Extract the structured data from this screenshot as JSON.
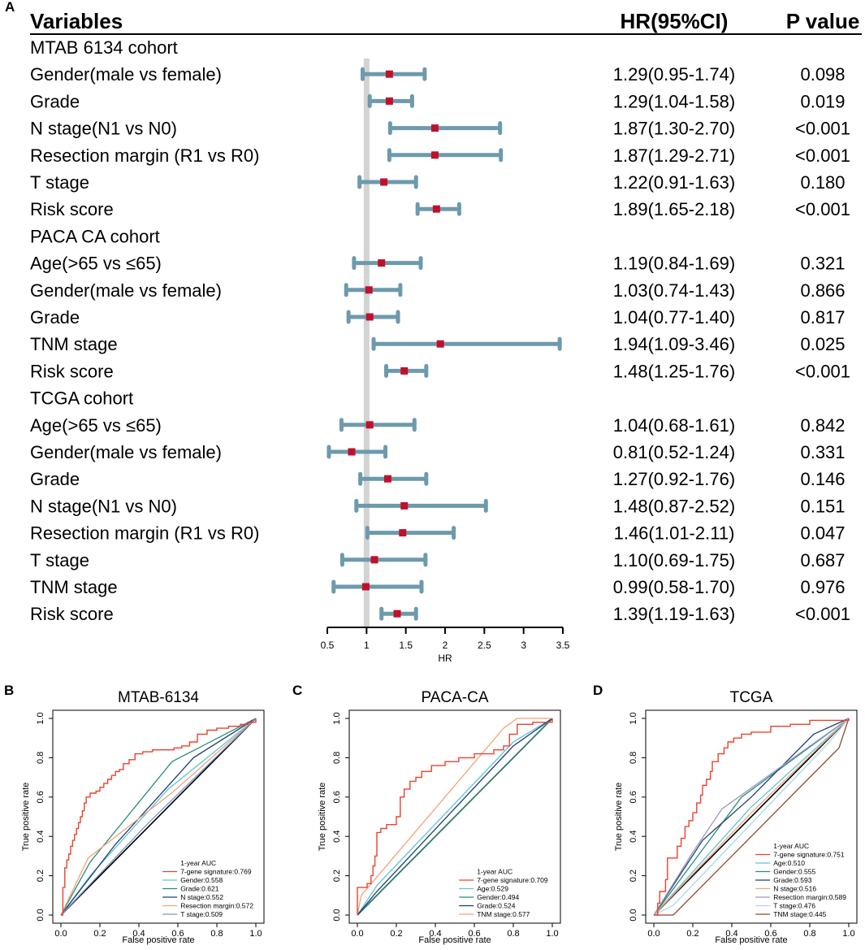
{
  "colors": {
    "ci_line": "#6d9aad",
    "point": "#c0112b",
    "reference_line": "#d3d3d3",
    "text": "#000000"
  },
  "chart_data": [
    {
      "type": "forest",
      "panel_label": "A",
      "headers": {
        "variables": "Variables",
        "hr": "HR(95%CI)",
        "p": "P value"
      },
      "xlabel": "HR",
      "xlim": [
        0.5,
        3.5
      ],
      "ticks": [
        0.5,
        1,
        1.5,
        2,
        2.5,
        3,
        3.5
      ],
      "tick_labels": [
        "0.5",
        "1",
        "1.5",
        "2",
        "2.5",
        "3",
        "3.5"
      ],
      "reference_value": 1,
      "rows": [
        {
          "label": "MTAB 6134 cohort",
          "group": true
        },
        {
          "label": "Gender(male vs female)",
          "hr": 1.29,
          "lo": 0.95,
          "hi": 1.74,
          "hr_text": "1.29(0.95-1.74)",
          "p": "0.098"
        },
        {
          "label": "Grade",
          "hr": 1.29,
          "lo": 1.04,
          "hi": 1.58,
          "hr_text": "1.29(1.04-1.58)",
          "p": "0.019"
        },
        {
          "label": "N stage(N1 vs N0)",
          "hr": 1.87,
          "lo": 1.3,
          "hi": 2.7,
          "hr_text": "1.87(1.30-2.70)",
          "p": "<0.001"
        },
        {
          "label": "Resection margin (R1 vs R0)",
          "hr": 1.87,
          "lo": 1.29,
          "hi": 2.71,
          "hr_text": "1.87(1.29-2.71)",
          "p": "<0.001"
        },
        {
          "label": "T stage",
          "hr": 1.22,
          "lo": 0.91,
          "hi": 1.63,
          "hr_text": "1.22(0.91-1.63)",
          "p": "0.180"
        },
        {
          "label": "Risk score",
          "hr": 1.89,
          "lo": 1.65,
          "hi": 2.18,
          "hr_text": "1.89(1.65-2.18)",
          "p": "<0.001"
        },
        {
          "label": "PACA CA cohort",
          "group": true
        },
        {
          "label": "Age(>65 vs ≤65)",
          "hr": 1.19,
          "lo": 0.84,
          "hi": 1.69,
          "hr_text": "1.19(0.84-1.69)",
          "p": "0.321"
        },
        {
          "label": "Gender(male vs female)",
          "hr": 1.03,
          "lo": 0.74,
          "hi": 1.43,
          "hr_text": "1.03(0.74-1.43)",
          "p": "0.866"
        },
        {
          "label": "Grade",
          "hr": 1.04,
          "lo": 0.77,
          "hi": 1.4,
          "hr_text": "1.04(0.77-1.40)",
          "p": "0.817"
        },
        {
          "label": "TNM stage",
          "hr": 1.94,
          "lo": 1.09,
          "hi": 3.46,
          "hr_text": "1.94(1.09-3.46)",
          "p": "0.025"
        },
        {
          "label": "Risk score",
          "hr": 1.48,
          "lo": 1.25,
          "hi": 1.76,
          "hr_text": "1.48(1.25-1.76)",
          "p": "<0.001"
        },
        {
          "label": "TCGA cohort",
          "group": true
        },
        {
          "label": "Age(>65 vs ≤65)",
          "hr": 1.04,
          "lo": 0.68,
          "hi": 1.61,
          "hr_text": "1.04(0.68-1.61)",
          "p": "0.842"
        },
        {
          "label": "Gender(male vs female)",
          "hr": 0.81,
          "lo": 0.52,
          "hi": 1.24,
          "hr_text": "0.81(0.52-1.24)",
          "p": "0.331"
        },
        {
          "label": "Grade",
          "hr": 1.27,
          "lo": 0.92,
          "hi": 1.76,
          "hr_text": "1.27(0.92-1.76)",
          "p": "0.146"
        },
        {
          "label": "N stage(N1 vs N0)",
          "hr": 1.48,
          "lo": 0.87,
          "hi": 2.52,
          "hr_text": "1.48(0.87-2.52)",
          "p": "0.151"
        },
        {
          "label": "Resection margin (R1 vs R0)",
          "hr": 1.46,
          "lo": 1.01,
          "hi": 2.11,
          "hr_text": "1.46(1.01-2.11)",
          "p": "0.047"
        },
        {
          "label": "T stage",
          "hr": 1.1,
          "lo": 0.69,
          "hi": 1.75,
          "hr_text": "1.10(0.69-1.75)",
          "p": "0.687"
        },
        {
          "label": "TNM stage",
          "hr": 0.99,
          "lo": 0.58,
          "hi": 1.7,
          "hr_text": "0.99(0.58-1.70)",
          "p": "0.976"
        },
        {
          "label": "Risk score",
          "hr": 1.39,
          "lo": 1.19,
          "hi": 1.63,
          "hr_text": "1.39(1.19-1.63)",
          "p": "<0.001"
        }
      ]
    },
    {
      "type": "line",
      "panel_label": "B",
      "title": "MTAB-6134",
      "xlabel": "False positive rate",
      "ylabel": "True positive rate",
      "xlim": [
        0,
        1
      ],
      "ylim": [
        0,
        1
      ],
      "ticks": [
        0,
        0.2,
        0.4,
        0.6,
        0.8,
        1
      ],
      "tick_labels": [
        "0.0",
        "0.2",
        "0.4",
        "0.6",
        "0.8",
        "1.0"
      ],
      "legend_title": "1-year AUC",
      "series": [
        {
          "name": "7-gene signature:0.769",
          "color": "#e8432e",
          "step": true,
          "points": [
            [
              0,
              0
            ],
            [
              0.01,
              0.08
            ],
            [
              0.01,
              0.14
            ],
            [
              0.02,
              0.18
            ],
            [
              0.02,
              0.24
            ],
            [
              0.03,
              0.28
            ],
            [
              0.04,
              0.31
            ],
            [
              0.05,
              0.35
            ],
            [
              0.06,
              0.38
            ],
            [
              0.07,
              0.41
            ],
            [
              0.08,
              0.44
            ],
            [
              0.09,
              0.47
            ],
            [
              0.1,
              0.5
            ],
            [
              0.11,
              0.53
            ],
            [
              0.12,
              0.57
            ],
            [
              0.13,
              0.6
            ],
            [
              0.15,
              0.62
            ],
            [
              0.18,
              0.63
            ],
            [
              0.2,
              0.65
            ],
            [
              0.22,
              0.67
            ],
            [
              0.24,
              0.69
            ],
            [
              0.26,
              0.71
            ],
            [
              0.28,
              0.73
            ],
            [
              0.3,
              0.74
            ],
            [
              0.32,
              0.77
            ],
            [
              0.35,
              0.79
            ],
            [
              0.38,
              0.82
            ],
            [
              0.42,
              0.83
            ],
            [
              0.47,
              0.84
            ],
            [
              0.52,
              0.84
            ],
            [
              0.58,
              0.85
            ],
            [
              0.62,
              0.86
            ],
            [
              0.66,
              0.88
            ],
            [
              0.7,
              0.92
            ],
            [
              0.75,
              0.94
            ],
            [
              0.8,
              0.95
            ],
            [
              0.86,
              0.96
            ],
            [
              0.92,
              0.97
            ],
            [
              0.96,
              0.98
            ],
            [
              1,
              0.99
            ],
            [
              1,
              1
            ]
          ]
        },
        {
          "name": "Gender:0.558",
          "color": "#5ec4d4",
          "step": false,
          "points": [
            [
              0,
              0
            ],
            [
              0.15,
              0.2
            ],
            [
              0.55,
              0.64
            ],
            [
              1,
              1
            ]
          ]
        },
        {
          "name": "Grade:0.621",
          "color": "#2a8c79",
          "step": false,
          "points": [
            [
              0,
              0
            ],
            [
              0.15,
              0.27
            ],
            [
              0.57,
              0.78
            ],
            [
              1,
              1
            ]
          ]
        },
        {
          "name": "N stage:0.552",
          "color": "#1e3e73",
          "step": false,
          "points": [
            [
              0,
              0
            ],
            [
              0.28,
              0.36
            ],
            [
              0.68,
              0.8
            ],
            [
              1,
              1
            ]
          ]
        },
        {
          "name": "Resection margin:0.572",
          "color": "#f0a37a",
          "step": false,
          "points": [
            [
              0,
              0
            ],
            [
              0.14,
              0.29
            ],
            [
              0.58,
              0.63
            ],
            [
              1,
              1
            ]
          ]
        },
        {
          "name": "T stage:0.509",
          "color": "#7a96c9",
          "step": false,
          "points": [
            [
              0,
              0
            ],
            [
              0.45,
              0.47
            ],
            [
              1,
              1
            ]
          ]
        }
      ]
    },
    {
      "type": "line",
      "panel_label": "C",
      "title": "PACA-CA",
      "xlabel": "False positive rate",
      "ylabel": "True positive rate",
      "xlim": [
        0,
        1
      ],
      "ylim": [
        0,
        1
      ],
      "ticks": [
        0,
        0.2,
        0.4,
        0.6,
        0.8,
        1
      ],
      "tick_labels": [
        "0.0",
        "0.2",
        "0.4",
        "0.6",
        "0.8",
        "1.0"
      ],
      "legend_title": "1-year AUC",
      "series": [
        {
          "name": "7-gene signature:0.709",
          "color": "#e8432e",
          "step": true,
          "points": [
            [
              0,
              0
            ],
            [
              0,
              0.14
            ],
            [
              0.05,
              0.16
            ],
            [
              0.07,
              0.2
            ],
            [
              0.08,
              0.25
            ],
            [
              0.09,
              0.3
            ],
            [
              0.1,
              0.37
            ],
            [
              0.1,
              0.42
            ],
            [
              0.12,
              0.44
            ],
            [
              0.15,
              0.46
            ],
            [
              0.2,
              0.5
            ],
            [
              0.22,
              0.6
            ],
            [
              0.24,
              0.64
            ],
            [
              0.27,
              0.68
            ],
            [
              0.3,
              0.7
            ],
            [
              0.33,
              0.73
            ],
            [
              0.38,
              0.76
            ],
            [
              0.45,
              0.78
            ],
            [
              0.52,
              0.8
            ],
            [
              0.6,
              0.82
            ],
            [
              0.7,
              0.84
            ],
            [
              0.75,
              0.86
            ],
            [
              0.78,
              0.92
            ],
            [
              0.82,
              0.97
            ],
            [
              0.9,
              0.98
            ],
            [
              1,
              1
            ]
          ]
        },
        {
          "name": "Age:0.529",
          "color": "#5ec4d4",
          "step": false,
          "points": [
            [
              0,
              0
            ],
            [
              0.1,
              0.15
            ],
            [
              0.8,
              0.88
            ],
            [
              1,
              1
            ]
          ]
        },
        {
          "name": "Gender:0.494",
          "color": "#2a8c79",
          "step": false,
          "points": [
            [
              0,
              0
            ],
            [
              0.5,
              0.5
            ],
            [
              1,
              1
            ]
          ]
        },
        {
          "name": "Grade:0.524",
          "color": "#1e3e73",
          "step": false,
          "points": [
            [
              0,
              0
            ],
            [
              0.1,
              0.12
            ],
            [
              0.8,
              0.86
            ],
            [
              1,
              1
            ]
          ]
        },
        {
          "name": "TNM stage:0.577",
          "color": "#f0a37a",
          "step": false,
          "points": [
            [
              0,
              0
            ],
            [
              0.02,
              0.1
            ],
            [
              0.75,
              0.95
            ],
            [
              0.82,
              1
            ],
            [
              1,
              1
            ]
          ]
        }
      ]
    },
    {
      "type": "line",
      "panel_label": "D",
      "title": "TCGA",
      "xlabel": "False positive rate",
      "ylabel": "True positive rate",
      "xlim": [
        0,
        1
      ],
      "ylim": [
        0,
        1
      ],
      "ticks": [
        0,
        0.2,
        0.4,
        0.6,
        0.8,
        1
      ],
      "tick_labels": [
        "0.0",
        "0.2",
        "0.4",
        "0.6",
        "0.8",
        "1.0"
      ],
      "legend_title": "1-year AUC",
      "series": [
        {
          "name": "7-gene signature:0.751",
          "color": "#e8432e",
          "step": true,
          "points": [
            [
              0,
              0
            ],
            [
              0.02,
              0.06
            ],
            [
              0.03,
              0.12
            ],
            [
              0.06,
              0.18
            ],
            [
              0.07,
              0.29
            ],
            [
              0.12,
              0.35
            ],
            [
              0.14,
              0.39
            ],
            [
              0.16,
              0.45
            ],
            [
              0.18,
              0.48
            ],
            [
              0.2,
              0.52
            ],
            [
              0.22,
              0.57
            ],
            [
              0.24,
              0.61
            ],
            [
              0.25,
              0.66
            ],
            [
              0.27,
              0.69
            ],
            [
              0.29,
              0.73
            ],
            [
              0.3,
              0.78
            ],
            [
              0.33,
              0.82
            ],
            [
              0.36,
              0.85
            ],
            [
              0.38,
              0.88
            ],
            [
              0.41,
              0.9
            ],
            [
              0.45,
              0.92
            ],
            [
              0.5,
              0.93
            ],
            [
              0.6,
              0.96
            ],
            [
              0.7,
              0.97
            ],
            [
              0.8,
              0.99
            ],
            [
              1,
              1
            ]
          ]
        },
        {
          "name": "Age:0.510",
          "color": "#5ec4d4",
          "step": false,
          "points": [
            [
              0,
              0
            ],
            [
              0.5,
              0.55
            ],
            [
              1,
              1
            ]
          ]
        },
        {
          "name": "Gender:0.555",
          "color": "#2a8c79",
          "step": false,
          "points": [
            [
              0,
              0
            ],
            [
              0.45,
              0.6
            ],
            [
              1,
              1
            ]
          ]
        },
        {
          "name": "Grade:0.593",
          "color": "#1e3e73",
          "step": false,
          "points": [
            [
              0,
              0
            ],
            [
              0.25,
              0.38
            ],
            [
              0.5,
              0.6
            ],
            [
              0.82,
              0.92
            ],
            [
              1,
              1
            ]
          ]
        },
        {
          "name": "N stage:0.516",
          "color": "#f0a37a",
          "step": false,
          "points": [
            [
              0,
              0
            ],
            [
              0.5,
              0.52
            ],
            [
              1,
              1
            ]
          ]
        },
        {
          "name": "Resection margin:0.589",
          "color": "#9b97c7",
          "step": false,
          "points": [
            [
              0,
              0
            ],
            [
              0.2,
              0.32
            ],
            [
              0.35,
              0.54
            ],
            [
              0.83,
              0.88
            ],
            [
              1,
              1
            ]
          ]
        },
        {
          "name": "T stage:0.476",
          "color": "#a5d8e6",
          "step": false,
          "points": [
            [
              0,
              0
            ],
            [
              0.1,
              0.05
            ],
            [
              0.9,
              0.88
            ],
            [
              1,
              1
            ]
          ]
        },
        {
          "name": "TNM stage:0.445",
          "color": "#8b4a2b",
          "step": false,
          "points": [
            [
              0,
              0
            ],
            [
              0.1,
              0
            ],
            [
              0.95,
              0.85
            ],
            [
              1,
              1
            ]
          ]
        }
      ]
    }
  ]
}
